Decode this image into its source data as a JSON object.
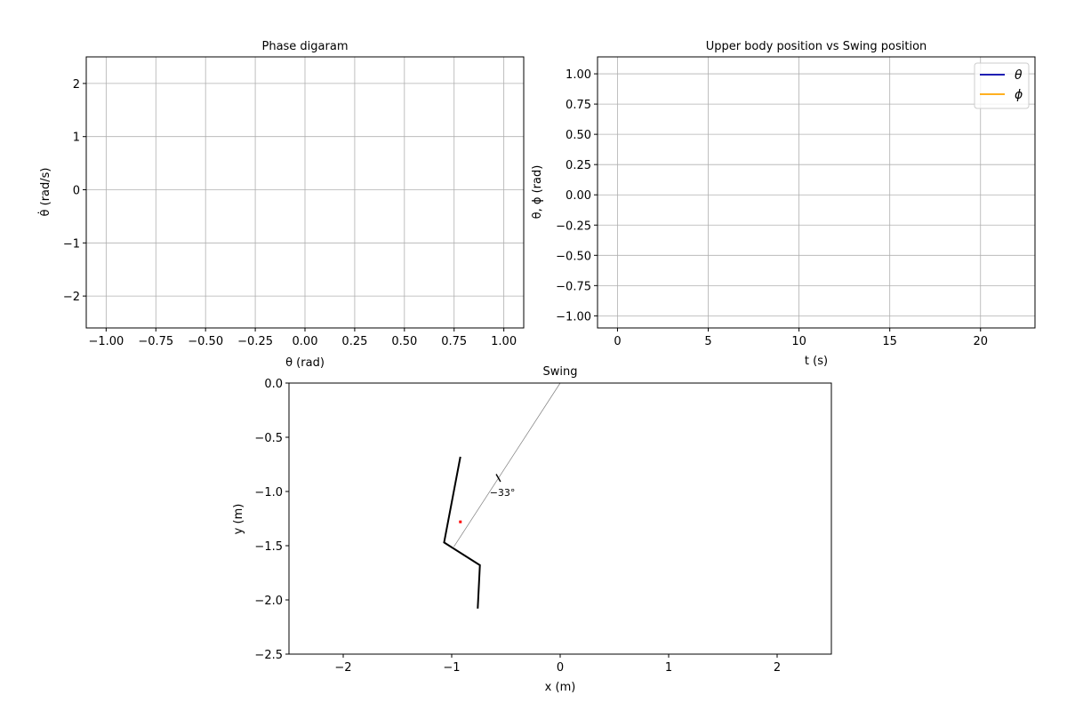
{
  "chart_data": [
    {
      "id": "phase",
      "type": "line",
      "title": "Phase digaram",
      "xlabel": "θ (rad)",
      "ylabel": "θ̇ (rad/s)",
      "xlim": [
        -1.1,
        1.1
      ],
      "ylim": [
        -2.6,
        2.5
      ],
      "xticks": [
        -1.0,
        -0.75,
        -0.5,
        -0.25,
        0.0,
        0.25,
        0.5,
        0.75,
        1.0
      ],
      "xtick_labels": [
        "−1.00",
        "−0.75",
        "−0.50",
        "−0.25",
        "0.00",
        "0.25",
        "0.50",
        "0.75",
        "1.00"
      ],
      "yticks": [
        -2,
        -1,
        0,
        1,
        2
      ],
      "ytick_labels": [
        "−2",
        "−1",
        "0",
        "1",
        "2"
      ],
      "grid": true,
      "series": []
    },
    {
      "id": "timeplot",
      "type": "line",
      "title": "Upper body position vs Swing position",
      "xlabel": "t (s)",
      "ylabel": "θ, ϕ (rad)",
      "xlim": [
        -1.1,
        23.0
      ],
      "ylim": [
        -1.1,
        1.14
      ],
      "xticks": [
        0,
        5,
        10,
        15,
        20
      ],
      "xtick_labels": [
        "0",
        "5",
        "10",
        "15",
        "20"
      ],
      "yticks": [
        -1.0,
        -0.75,
        -0.5,
        -0.25,
        0.0,
        0.25,
        0.5,
        0.75,
        1.0
      ],
      "ytick_labels": [
        "−1.00",
        "−0.75",
        "−0.50",
        "−0.25",
        "0.00",
        "0.25",
        "0.50",
        "0.75",
        "1.00"
      ],
      "grid": true,
      "legend_position": "top-right",
      "series": [
        {
          "name": "θ",
          "color": "#0000aa",
          "values": []
        },
        {
          "name": "ϕ",
          "color": "#ffa500",
          "values": []
        }
      ]
    },
    {
      "id": "swing",
      "type": "scatter",
      "title": "Swing",
      "xlabel": "x (m)",
      "ylabel": "y (m)",
      "xlim": [
        -2.5,
        2.5
      ],
      "ylim": [
        -2.5,
        0.0
      ],
      "xticks": [
        -2,
        -1,
        0,
        1,
        2
      ],
      "xtick_labels": [
        "−2",
        "−1",
        "0",
        "1",
        "2"
      ],
      "yticks": [
        -2.5,
        -2.0,
        -1.5,
        -1.0,
        -0.5,
        0.0
      ],
      "ytick_labels": [
        "−2.5",
        "−2.0",
        "−1.5",
        "−1.0",
        "−0.5",
        "0.0"
      ],
      "grid": false,
      "rope": [
        [
          0.0,
          0.0
        ],
        [
          -0.98,
          -1.51
        ]
      ],
      "body": [
        [
          -0.92,
          -0.68
        ],
        [
          -1.07,
          -1.47
        ],
        [
          -0.74,
          -1.68
        ],
        [
          -0.76,
          -2.08
        ]
      ],
      "center_of_mass": [
        -0.92,
        -1.28
      ],
      "angle_arc_marker": [
        [
          -0.59,
          -0.84
        ],
        [
          -0.55,
          -0.91
        ]
      ],
      "angle_label": "−33°",
      "angle_label_pos": [
        -0.65,
        -1.01
      ]
    }
  ]
}
